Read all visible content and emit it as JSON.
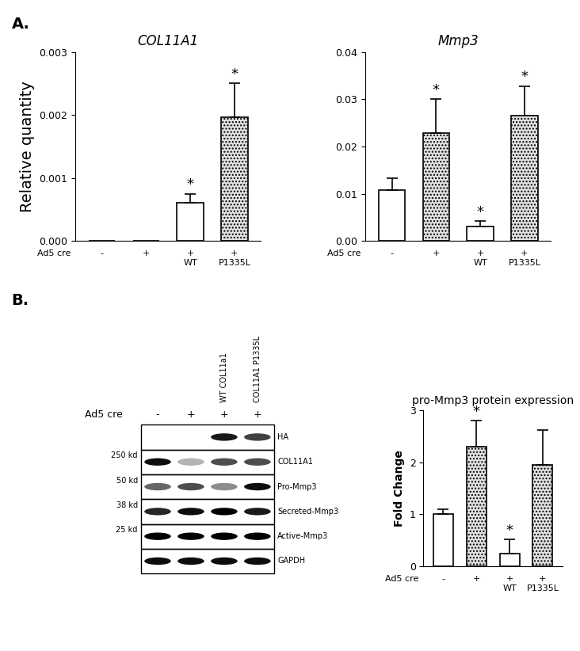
{
  "panel_labels": [
    "A.",
    "B."
  ],
  "chart_data": [
    {
      "type": "bar",
      "title": "COL11A1",
      "ylabel": "Relative quantity",
      "xlabel": "Ad5 cre",
      "categories": [
        "-",
        "+",
        "+\nWT",
        "+\nP1335L"
      ],
      "values": [
        0,
        0,
        0.0006,
        0.00197
      ],
      "errors": [
        0,
        0,
        0.00015,
        0.00053
      ],
      "significance": [
        null,
        null,
        "*",
        "*"
      ],
      "colors": [
        "#ffffff",
        "#ffffff",
        "#ffffff",
        "#e0e0e0"
      ],
      "ylim": [
        0,
        0.003
      ],
      "yticks": [
        {
          "value": 0,
          "label": "0.000"
        },
        {
          "value": 0.001,
          "label": "0.001"
        },
        {
          "value": 0.002,
          "label": "0.002"
        },
        {
          "value": 0.003,
          "label": "0.003"
        }
      ]
    },
    {
      "type": "bar",
      "title": "Mmp3",
      "xlabel": "Ad5 cre",
      "categories": [
        "-",
        "+",
        "+\nWT",
        "+\nP1335L"
      ],
      "values": [
        0.0107,
        0.0228,
        0.003,
        0.0265
      ],
      "errors": [
        0.0025,
        0.0072,
        0.0012,
        0.0063
      ],
      "significance": [
        null,
        "*",
        "*",
        "*"
      ],
      "colors": [
        "#ffffff",
        "#e0e0e0",
        "#ffffff",
        "#e0e0e0"
      ],
      "ylim": [
        0,
        0.04
      ],
      "yticks": [
        {
          "value": 0,
          "label": "0.00"
        },
        {
          "value": 0.01,
          "label": "0.01"
        },
        {
          "value": 0.02,
          "label": "0.02"
        },
        {
          "value": 0.03,
          "label": "0.03"
        },
        {
          "value": 0.04,
          "label": "0.04"
        }
      ]
    },
    {
      "type": "bar",
      "title": "pro-Mmp3 protein expression",
      "ylabel": "Fold Change",
      "xlabel": "Ad5 cre",
      "categories": [
        "-",
        "+",
        "+\nWT",
        "+\nP1335L"
      ],
      "values": [
        1.0,
        2.3,
        0.25,
        1.95
      ],
      "errors": [
        0.1,
        0.5,
        0.27,
        0.67
      ],
      "significance": [
        null,
        "*",
        "*",
        null
      ],
      "colors": [
        "#ffffff",
        "#e0e0e0",
        "#ffffff",
        "#e0e0e0"
      ],
      "ylim": [
        0,
        3
      ],
      "yticks": [
        0,
        1,
        2,
        3
      ]
    }
  ],
  "blot": {
    "header_label": "Ad5 cre",
    "lanes": [
      "-",
      "+",
      "+",
      "+"
    ],
    "lane_names": [
      null,
      null,
      "WT COL11a1",
      "COL11A1 P1335L"
    ],
    "bands": [
      {
        "label": "HA",
        "mw": null,
        "intensity": [
          0,
          0,
          0.9,
          0.75
        ]
      },
      {
        "label": "COL11A1",
        "mw": "250 kd",
        "intensity": [
          0.95,
          0.3,
          0.7,
          0.7
        ]
      },
      {
        "label": "Pro-Mmp3",
        "mw": "50 kd",
        "intensity": [
          0.6,
          0.7,
          0.45,
          0.95
        ]
      },
      {
        "label": "Secreted-Mmp3",
        "mw": "38 kd",
        "intensity": [
          0.85,
          0.95,
          1.0,
          0.9
        ]
      },
      {
        "label": "Active-Mmp3",
        "mw": "25 kd",
        "intensity": [
          1.0,
          1.0,
          1.0,
          1.0
        ]
      },
      {
        "label": "GAPDH",
        "mw": null,
        "intensity": [
          0.95,
          0.95,
          0.95,
          0.95
        ]
      }
    ]
  }
}
